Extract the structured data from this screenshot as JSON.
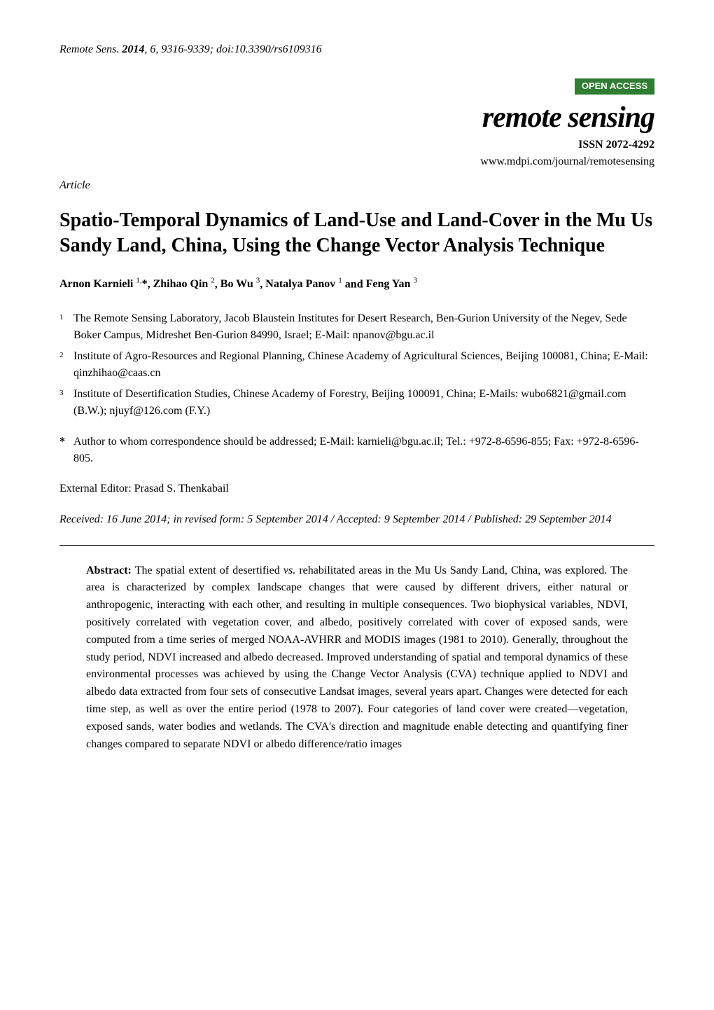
{
  "header": {
    "journal_ref": "Remote Sens.",
    "year": "2014",
    "volume": "6",
    "pages": "9316-9339",
    "doi": "doi:10.3390/rs6109316",
    "open_access_label": "OPEN ACCESS",
    "open_access_bg": "#2e7d32",
    "journal_title": "remote sensing",
    "issn_label": "ISSN 2072-4292",
    "journal_url": "www.mdpi.com/journal/remotesensing"
  },
  "article_type": "Article",
  "title": "Spatio-Temporal Dynamics of Land-Use and Land-Cover in the Mu Us Sandy Land, China, Using the Change Vector Analysis Technique",
  "authors": [
    {
      "name": "Arnon Karnieli",
      "sup": "1,",
      "star": "*"
    },
    {
      "name": "Zhihao Qin",
      "sup": "2"
    },
    {
      "name": "Bo Wu",
      "sup": "3"
    },
    {
      "name": "Natalya Panov",
      "sup": "1"
    },
    {
      "name": "Feng Yan",
      "sup": "3"
    }
  ],
  "author_separator": ", ",
  "author_last_separator": " and ",
  "affiliations": [
    {
      "num": "1",
      "text": "The Remote Sensing Laboratory, Jacob Blaustein Institutes for Desert Research, Ben-Gurion University of the Negev, Sede Boker Campus, Midreshet Ben-Gurion 84990, Israel; E-Mail: npanov@bgu.ac.il"
    },
    {
      "num": "2",
      "text": "Institute of Agro-Resources and Regional Planning, Chinese Academy of Agricultural Sciences, Beijing 100081, China; E-Mail: qinzhihao@caas.cn"
    },
    {
      "num": "3",
      "text": "Institute of Desertification Studies, Chinese Academy of Forestry, Beijing 100091, China; E-Mails: wubo6821@gmail.com (B.W.); njuyf@126.com (F.Y.)"
    }
  ],
  "corresponding": {
    "star": "*",
    "text": "Author to whom correspondence should be addressed; E-Mail: karnieli@bgu.ac.il; Tel.: +972-8-6596-855; Fax: +972-8-6596-805."
  },
  "editor": "External Editor: Prasad S. Thenkabail",
  "dates": "Received: 16 June 2014; in revised form: 5 September 2014 / Accepted: 9 September 2014 / Published: 29 September 2014",
  "abstract": {
    "label": "Abstract:",
    "vs": "vs.",
    "text_before_vs": "The spatial extent of desertified ",
    "text_after_vs": " rehabilitated areas in the Mu Us Sandy Land, China, was explored. The area is characterized by complex landscape changes that were caused by different drivers, either natural or anthropogenic, interacting with each other, and resulting in multiple consequences. Two biophysical variables, NDVI, positively correlated with vegetation cover, and albedo, positively correlated with cover of exposed sands, were computed from a time series of merged NOAA-AVHRR and MODIS images (1981 to 2010). Generally, throughout the study period, NDVI increased and albedo decreased. Improved understanding of spatial and temporal dynamics of these environmental processes was achieved by using the Change Vector Analysis (CVA) technique applied to NDVI and albedo data extracted from four sets of consecutive Landsat images, several years apart. Changes were detected for each time step, as well as over the entire period (1978 to 2007). Four categories of land cover were created—vegetation, exposed sands, water bodies and wetlands. The CVA's direction and magnitude enable detecting and quantifying finer changes compared to separate NDVI or albedo difference/ratio images"
  }
}
